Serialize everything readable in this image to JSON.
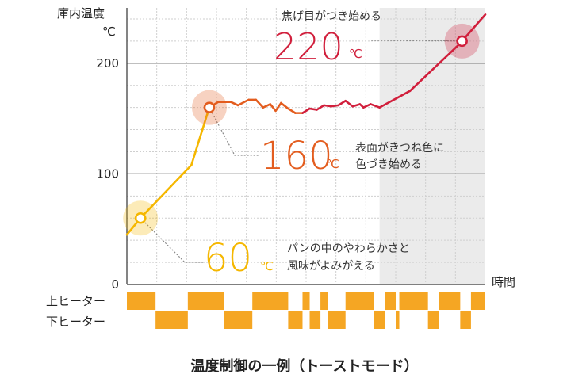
{
  "chart_data": {
    "type": "line",
    "title": "温度制御の一例（トーストモード）",
    "ylabel": "庫内温度",
    "yunit": "℃",
    "xlabel": "時間",
    "ylim": [
      0,
      250
    ],
    "yticks": [
      0,
      100,
      200
    ],
    "grid": true,
    "shaded_region": {
      "x_from": 0.705,
      "x_to": 1.0,
      "label": ""
    },
    "series": [
      {
        "name": "庫内温度",
        "x": [
          0.0,
          0.038,
          0.18,
          0.23,
          0.255,
          0.29,
          0.31,
          0.34,
          0.36,
          0.38,
          0.4,
          0.415,
          0.43,
          0.45,
          0.47,
          0.49,
          0.51,
          0.53,
          0.55,
          0.57,
          0.59,
          0.61,
          0.63,
          0.65,
          0.66,
          0.68,
          0.705,
          0.79,
          0.93,
          0.935,
          1.0
        ],
        "y": [
          45,
          60,
          108,
          160,
          165,
          165,
          162,
          167,
          167,
          160,
          163,
          157,
          164,
          159,
          155,
          155,
          159,
          158,
          162,
          161,
          162,
          166,
          161,
          163,
          160,
          163,
          160,
          175,
          218,
          220,
          244
        ]
      }
    ],
    "markers": [
      {
        "x": 0.038,
        "y": 60,
        "color": "#f5b700"
      },
      {
        "x": 0.23,
        "y": 160,
        "color": "#e35d1f"
      },
      {
        "x": 0.935,
        "y": 220,
        "color": "#d11f3c"
      }
    ],
    "annotations": [
      {
        "value": "60",
        "unit": "℃",
        "lines": [
          "パンの中のやわらかさと",
          "風味がよみがえる"
        ],
        "color": "#f5b700"
      },
      {
        "value": "160",
        "unit": "℃",
        "lines": [
          "表面がきつね色に",
          "色づき始める"
        ],
        "color": "#e35d1f"
      },
      {
        "value": "220",
        "unit": "℃",
        "lines": [
          "焦げ目がつき始める"
        ],
        "color": "#d11f3c"
      }
    ],
    "heaters": {
      "upper_label": "上ヒーター",
      "lower_label": "下ヒーター",
      "color": "#f5a623",
      "upper_on": [
        [
          0.0,
          0.08
        ],
        [
          0.17,
          0.27
        ],
        [
          0.35,
          0.45
        ],
        [
          0.49,
          0.51
        ],
        [
          0.54,
          0.56
        ],
        [
          0.61,
          0.69
        ],
        [
          0.72,
          0.75
        ],
        [
          0.76,
          0.84
        ],
        [
          0.87,
          0.93
        ],
        [
          0.96,
          1.0
        ]
      ],
      "lower_on": [
        [
          0.08,
          0.17
        ],
        [
          0.27,
          0.35
        ],
        [
          0.45,
          0.49
        ],
        [
          0.51,
          0.54
        ],
        [
          0.56,
          0.61
        ],
        [
          0.69,
          0.72
        ],
        [
          0.75,
          0.76
        ],
        [
          0.84,
          0.87
        ],
        [
          0.93,
          0.96
        ]
      ]
    }
  }
}
